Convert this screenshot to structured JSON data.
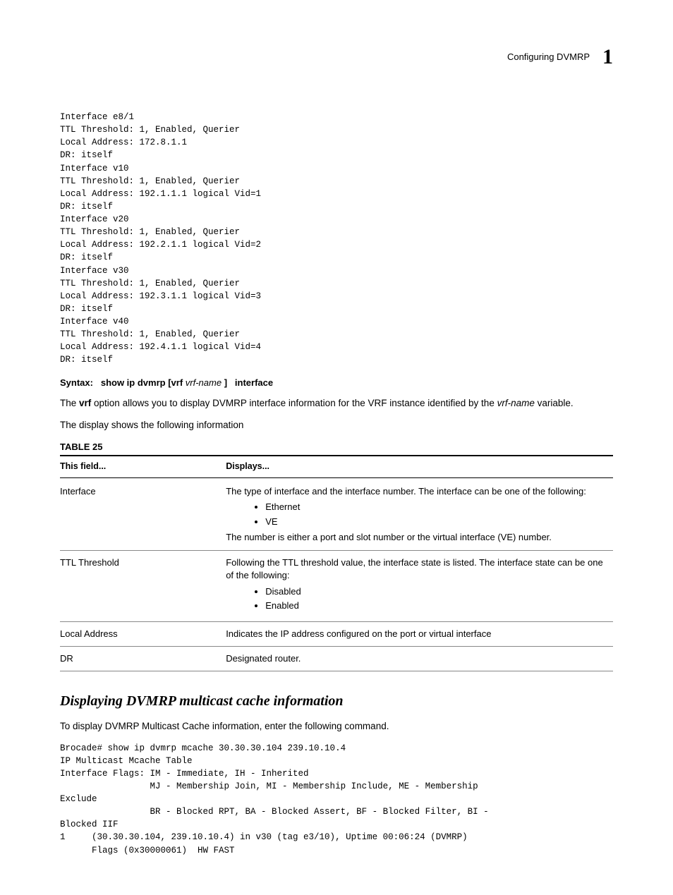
{
  "header": {
    "title": "Configuring DVMRP",
    "chapter_number": "1"
  },
  "code_block_1": "Interface e8/1\nTTL Threshold: 1, Enabled, Querier\nLocal Address: 172.8.1.1\nDR: itself\nInterface v10\nTTL Threshold: 1, Enabled, Querier\nLocal Address: 192.1.1.1 logical Vid=1\nDR: itself\nInterface v20\nTTL Threshold: 1, Enabled, Querier\nLocal Address: 192.2.1.1 logical Vid=2\nDR: itself\nInterface v30\nTTL Threshold: 1, Enabled, Querier\nLocal Address: 192.3.1.1 logical Vid=3\nDR: itself\nInterface v40\nTTL Threshold: 1, Enabled, Querier\nLocal Address: 192.4.1.1 logical Vid=4\nDR: itself",
  "syntax": {
    "label": "Syntax:",
    "parts": {
      "p1": "show ip dvmrp",
      "p2": "[vrf",
      "p3_italic": "vrf-name",
      "p4": "]",
      "p5": "interface"
    }
  },
  "para1_pre": "The ",
  "para1_bold": "vrf",
  "para1_mid": " option allows you to display DVMRP interface information for the VRF instance identified by the ",
  "para1_italic": "vrf-name",
  "para1_post": " variable.",
  "para2": "The display shows the following information",
  "table": {
    "label": "TABLE 25",
    "th_field": "This field...",
    "th_disp": "Displays...",
    "rows": [
      {
        "field": "Interface",
        "intro": "The type of interface and the interface number. The interface can be one of the following:",
        "bullets": [
          "Ethernet",
          "VE"
        ],
        "outro": "The number is either a port and slot number or the virtual interface (VE) number."
      },
      {
        "field": "TTL Threshold",
        "intro": "Following the TTL threshold value, the interface state is listed. The interface state can be one of the following:",
        "bullets": [
          "Disabled",
          "Enabled"
        ],
        "outro": ""
      },
      {
        "field": "Local Address",
        "intro": "Indicates the IP address configured on the port or virtual interface",
        "bullets": [],
        "outro": ""
      },
      {
        "field": "DR",
        "intro": "Designated router.",
        "bullets": [],
        "outro": ""
      }
    ]
  },
  "section_heading": "Displaying DVMRP multicast cache information",
  "para3": "To display DVMRP Multicast Cache information, enter the following command.",
  "code_block_2": "Brocade# show ip dvmrp mcache 30.30.30.104 239.10.10.4\nIP Multicast Mcache Table\nInterface Flags: IM - Immediate, IH - Inherited\n                 MJ - Membership Join, MI - Membership Include, ME - Membership\nExclude\n                 BR - Blocked RPT, BA - Blocked Assert, BF - Blocked Filter, BI -\nBlocked IIF\n1     (30.30.30.104, 239.10.10.4) in v30 (tag e3/10), Uptime 00:06:24 (DVMRP)\n      Flags (0x30000061)  HW FAST"
}
